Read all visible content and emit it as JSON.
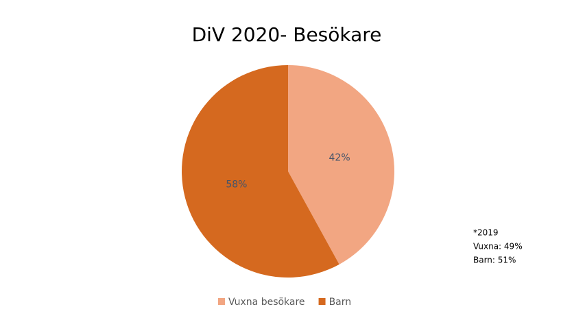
{
  "chart_data": {
    "type": "pie",
    "title": "DiV 2020- Besökare",
    "categories": [
      "Vuxna besökare",
      "Barn"
    ],
    "values": [
      42,
      58
    ],
    "value_labels": [
      "42%",
      "58%"
    ],
    "colors": [
      "#f2a682",
      "#d5691f"
    ],
    "annotations": [
      "*2019",
      "Vuxna: 49%",
      "Barn: 51%"
    ],
    "legend": "bottom"
  }
}
